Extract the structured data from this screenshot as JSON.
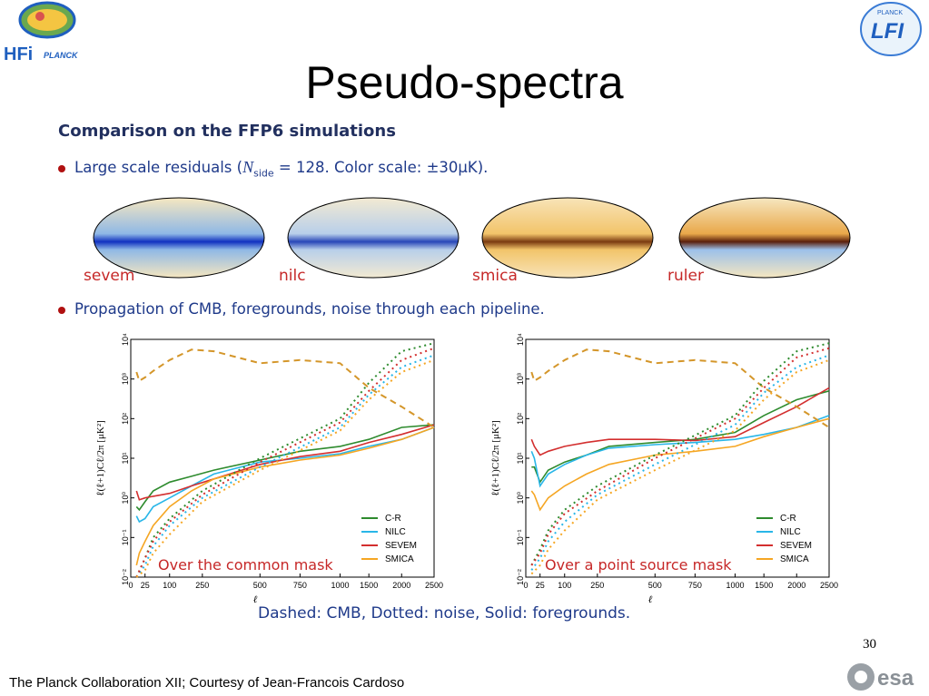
{
  "slide": {
    "title": "Pseudo-spectra",
    "subtitle": "Comparison on the FFP6 simulations",
    "bullet1": {
      "prefix": "Large scale residuals (",
      "n": "N",
      "sub": "side",
      "rest": " = 128.  Color scale:  ±30μK)."
    },
    "map_labels": [
      "sevem",
      "nilc",
      "smica",
      "ruler"
    ],
    "bullet2": "Propagation of CMB, foregrounds, noise through each pipeline.",
    "caption": "Dashed:  CMB, Dotted:  noise, Solid:  foregrounds.",
    "page_number": "30",
    "footer": "The Planck Collaboration XII; Courtesy of Jean-Francois Cardoso",
    "logo_left": "HFI PLANCK",
    "logo_right": "PLANCK LFI",
    "logo_esa": "esa"
  },
  "colors": {
    "C-R": "#2e8b2e",
    "NILC": "#29b6e8",
    "SEVEM": "#d32f2f",
    "SMICA": "#f5a623",
    "CMB": "#d4962a"
  },
  "chart_data": [
    {
      "type": "line",
      "title": "Over the common mask",
      "xlabel": "ℓ",
      "ylabel": "ℓ(ℓ+1)Cℓ/2π [μK²]",
      "yscale": "log",
      "ylim": [
        0.01,
        10000
      ],
      "xticks": [
        "0",
        "25",
        "100",
        "250",
        "500",
        "750",
        "1000",
        "1500",
        "2000",
        "2500"
      ],
      "yticks": [
        "10⁻²",
        "10⁻¹",
        "10⁰",
        "10¹",
        "10²",
        "10³",
        "10⁴"
      ],
      "legend": [
        "C-R",
        "NILC",
        "SEVEM",
        "SMICA"
      ],
      "legend_position": "bottom-right",
      "series": [
        {
          "name": "C-R",
          "style": "solid",
          "x": [
            10,
            15,
            25,
            50,
            100,
            200,
            300,
            500,
            750,
            1000,
            1500,
            2000,
            2500
          ],
          "y": [
            0.6,
            0.5,
            0.8,
            1.5,
            2.5,
            3.5,
            5,
            9,
            15,
            20,
            30,
            60,
            70
          ]
        },
        {
          "name": "NILC",
          "style": "solid",
          "x": [
            10,
            15,
            25,
            50,
            100,
            200,
            300,
            500,
            750,
            1000,
            1500,
            2000,
            2500
          ],
          "y": [
            0.35,
            0.25,
            0.3,
            0.6,
            1,
            2,
            4,
            8,
            10,
            13,
            20,
            30,
            60
          ]
        },
        {
          "name": "SEVEM",
          "style": "solid",
          "x": [
            10,
            15,
            25,
            50,
            100,
            200,
            300,
            500,
            750,
            1000,
            1500,
            2000,
            2500
          ],
          "y": [
            1.5,
            0.9,
            1,
            1.1,
            1.3,
            2,
            3,
            7,
            11,
            15,
            25,
            40,
            70
          ]
        },
        {
          "name": "SMICA",
          "style": "solid",
          "x": [
            10,
            15,
            25,
            50,
            100,
            200,
            300,
            500,
            750,
            1000,
            1500,
            2000,
            2500
          ],
          "y": [
            0.02,
            0.04,
            0.08,
            0.2,
            0.6,
            1.5,
            3,
            6,
            9,
            12,
            18,
            30,
            60
          ]
        },
        {
          "name": "CMB",
          "style": "dashed",
          "x": [
            10,
            15,
            25,
            50,
            100,
            200,
            300,
            500,
            750,
            1000,
            1500,
            2000,
            2500
          ],
          "y": [
            1500,
            900,
            1100,
            1600,
            3000,
            5500,
            5000,
            2500,
            3000,
            2500,
            600,
            200,
            60
          ]
        },
        {
          "name": "C-R noise",
          "style": "dotted",
          "x": [
            10,
            25,
            50,
            100,
            250,
            500,
            1000,
            1500,
            2000,
            2500
          ],
          "y": [
            0.01,
            0.03,
            0.1,
            0.3,
            1.5,
            10,
            100,
            800,
            5000,
            8000
          ]
        },
        {
          "name": "NILC noise",
          "style": "dotted",
          "x": [
            10,
            25,
            50,
            100,
            250,
            500,
            1000,
            1500,
            2000,
            2500
          ],
          "y": [
            0.01,
            0.02,
            0.06,
            0.2,
            1,
            6,
            60,
            400,
            2000,
            4000
          ]
        },
        {
          "name": "SEVEM noise",
          "style": "dotted",
          "x": [
            10,
            25,
            50,
            100,
            250,
            500,
            1000,
            1500,
            2000,
            2500
          ],
          "y": [
            0.01,
            0.03,
            0.08,
            0.25,
            1.2,
            8,
            80,
            500,
            3000,
            6000
          ]
        },
        {
          "name": "SMICA noise",
          "style": "dotted",
          "x": [
            10,
            25,
            50,
            100,
            250,
            500,
            1000,
            1500,
            2000,
            2500
          ],
          "y": [
            0.01,
            0.015,
            0.04,
            0.12,
            0.8,
            5,
            50,
            300,
            1500,
            3000
          ]
        }
      ]
    },
    {
      "type": "line",
      "title": "Over a point source mask",
      "xlabel": "ℓ",
      "ylabel": "ℓ(ℓ+1)Cℓ/2π [μK²]",
      "yscale": "log",
      "ylim": [
        0.01,
        10000
      ],
      "xticks": [
        "0",
        "25",
        "100",
        "250",
        "500",
        "750",
        "1000",
        "1500",
        "2000",
        "2500"
      ],
      "yticks": [
        "10⁻²",
        "10⁻¹",
        "10⁰",
        "10¹",
        "10²",
        "10³",
        "10⁴"
      ],
      "legend": [
        "C-R",
        "NILC",
        "SEVEM",
        "SMICA"
      ],
      "legend_position": "bottom-right",
      "series": [
        {
          "name": "C-R",
          "style": "solid",
          "x": [
            10,
            15,
            25,
            50,
            100,
            200,
            300,
            500,
            750,
            1000,
            1500,
            2000,
            2500
          ],
          "y": [
            6,
            6,
            2.5,
            5,
            8,
            12,
            20,
            25,
            30,
            45,
            120,
            300,
            500
          ]
        },
        {
          "name": "NILC",
          "style": "solid",
          "x": [
            10,
            15,
            25,
            50,
            100,
            200,
            300,
            500,
            750,
            1000,
            1500,
            2000,
            2500
          ],
          "y": [
            15,
            10,
            2,
            4,
            7,
            12,
            18,
            22,
            25,
            30,
            40,
            60,
            120
          ]
        },
        {
          "name": "SEVEM",
          "style": "solid",
          "x": [
            10,
            15,
            25,
            50,
            100,
            200,
            300,
            500,
            750,
            1000,
            1500,
            2000,
            2500
          ],
          "y": [
            30,
            20,
            12,
            15,
            20,
            25,
            30,
            30,
            28,
            35,
            80,
            200,
            600
          ]
        },
        {
          "name": "SMICA",
          "style": "solid",
          "x": [
            10,
            15,
            25,
            50,
            100,
            200,
            300,
            500,
            750,
            1000,
            1500,
            2000,
            2500
          ],
          "y": [
            1.5,
            1.2,
            0.5,
            1,
            2,
            4,
            7,
            12,
            15,
            20,
            35,
            60,
            100
          ]
        },
        {
          "name": "CMB",
          "style": "dashed",
          "x": [
            10,
            15,
            25,
            50,
            100,
            200,
            300,
            500,
            750,
            1000,
            1500,
            2000,
            2500
          ],
          "y": [
            1500,
            900,
            1100,
            1600,
            3000,
            5500,
            5000,
            2500,
            3000,
            2500,
            600,
            200,
            60
          ]
        },
        {
          "name": "C-R noise",
          "style": "dotted",
          "x": [
            10,
            25,
            50,
            100,
            250,
            500,
            1000,
            1500,
            2000,
            2500
          ],
          "y": [
            0.02,
            0.05,
            0.15,
            0.5,
            2,
            12,
            120,
            900,
            5000,
            8000
          ]
        },
        {
          "name": "NILC noise",
          "style": "dotted",
          "x": [
            10,
            25,
            50,
            100,
            250,
            500,
            1000,
            1500,
            2000,
            2500
          ],
          "y": [
            0.015,
            0.03,
            0.08,
            0.25,
            1.2,
            7,
            70,
            450,
            2000,
            4000
          ]
        },
        {
          "name": "SEVEM noise",
          "style": "dotted",
          "x": [
            10,
            25,
            50,
            100,
            250,
            500,
            1000,
            1500,
            2000,
            2500
          ],
          "y": [
            0.02,
            0.04,
            0.12,
            0.4,
            1.5,
            10,
            100,
            600,
            3500,
            6000
          ]
        },
        {
          "name": "SMICA noise",
          "style": "dotted",
          "x": [
            10,
            25,
            50,
            100,
            250,
            500,
            1000,
            1500,
            2000,
            2500
          ],
          "y": [
            0.012,
            0.02,
            0.05,
            0.15,
            0.9,
            5,
            50,
            300,
            1500,
            3000
          ]
        }
      ]
    }
  ]
}
